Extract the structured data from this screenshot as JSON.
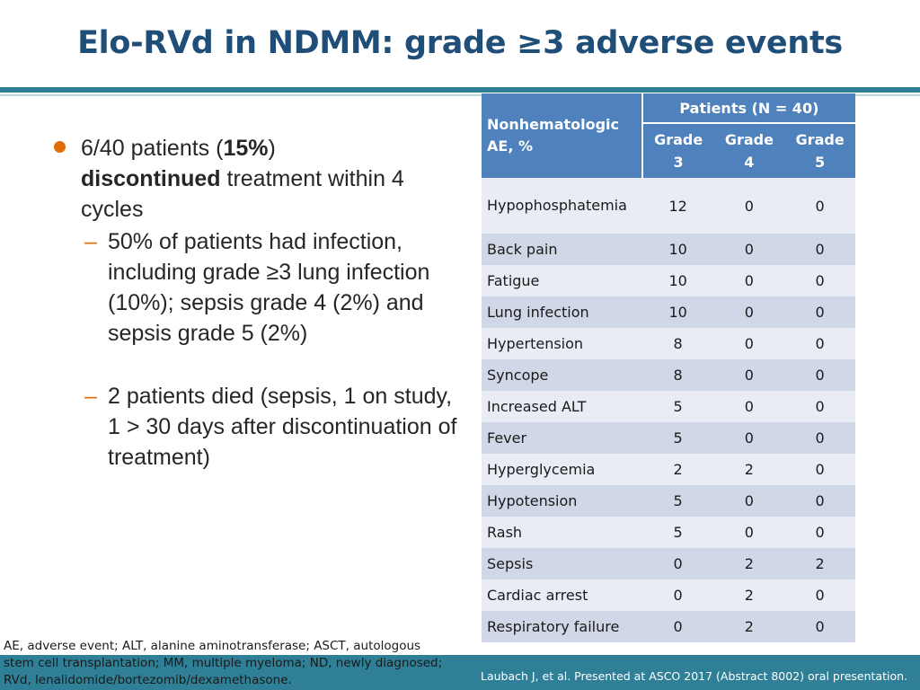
{
  "title": "Elo-RVd in NDMM: grade ≥3 adverse events",
  "bullets": {
    "main_pre": "6/40 patients (",
    "main_bold_pct": "15%",
    "main_mid": ")",
    "main_bold_word": "discontinued",
    "main_post": " treatment within 4 cycles",
    "sub1": "50% of patients had infection, including grade ≥3 lung infection (10%); sepsis grade 4 (2%) and sepsis grade 5 (2%)",
    "sub2_line1": "2 patients died (sepsis, 1 on study,",
    "sub2_line2": "1 > 30 days after discontinuation of treatment)",
    "dash": "–"
  },
  "table": {
    "col_ae": "Nonhematologic AE, %",
    "col_group": "Patients (N = 40)",
    "grades": [
      "Grade 3",
      "Grade 4",
      "Grade 5"
    ],
    "rows": [
      {
        "name": "Hypophosphatemia",
        "g3": "12",
        "g4": "0",
        "g5": "0"
      },
      {
        "name": "Back pain",
        "g3": "10",
        "g4": "0",
        "g5": "0"
      },
      {
        "name": "Fatigue",
        "g3": "10",
        "g4": "0",
        "g5": "0"
      },
      {
        "name": "Lung infection",
        "g3": "10",
        "g4": "0",
        "g5": "0"
      },
      {
        "name": "Hypertension",
        "g3": "8",
        "g4": "0",
        "g5": "0"
      },
      {
        "name": "Syncope",
        "g3": "8",
        "g4": "0",
        "g5": "0"
      },
      {
        "name": "Increased ALT",
        "g3": "5",
        "g4": "0",
        "g5": "0"
      },
      {
        "name": "Fever",
        "g3": "5",
        "g4": "0",
        "g5": "0"
      },
      {
        "name": "Hyperglycemia",
        "g3": "2",
        "g4": "2",
        "g5": "0"
      },
      {
        "name": "Hypotension",
        "g3": "5",
        "g4": "0",
        "g5": "0"
      },
      {
        "name": "Rash",
        "g3": "5",
        "g4": "0",
        "g5": "0"
      },
      {
        "name": "Sepsis",
        "g3": "0",
        "g4": "2",
        "g5": "2"
      },
      {
        "name": "Cardiac arrest",
        "g3": "0",
        "g4": "2",
        "g5": "0"
      },
      {
        "name": "Respiratory failure",
        "g3": "0",
        "g4": "2",
        "g5": "0"
      }
    ]
  },
  "abbreviations": "AE, adverse event; ALT, alanine aminotransferase; ASCT, autologous stem cell transplantation; MM, multiple myeloma; ND, newly diagnosed; RVd, lenalidomide/bortezomib/dexamethasone.",
  "citation": "Laubach J, et al. Presented at ASCO 2017 (Abstract 8002) oral presentation.",
  "colors": {
    "title": "#1f4e79",
    "accent_teal": "#2f7f96",
    "bullet_orange": "#e36c0a",
    "header_blue": "#4f81bd",
    "row_dark": "#d0d8e8",
    "row_light": "#e9ecf5"
  }
}
